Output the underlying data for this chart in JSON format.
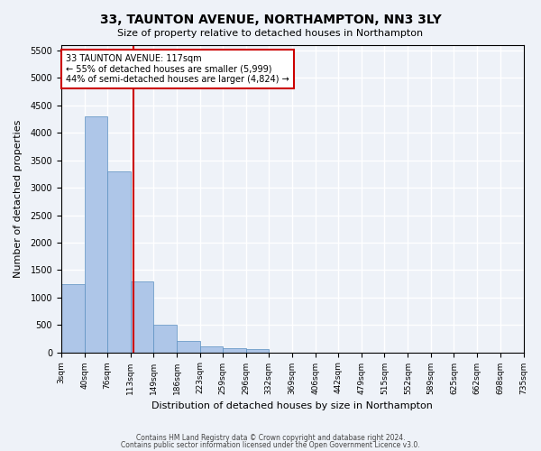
{
  "title": "33, TAUNTON AVENUE, NORTHAMPTON, NN3 3LY",
  "subtitle": "Size of property relative to detached houses in Northampton",
  "xlabel": "Distribution of detached houses by size in Northampton",
  "ylabel": "Number of detached properties",
  "footer_line1": "Contains HM Land Registry data © Crown copyright and database right 2024.",
  "footer_line2": "Contains public sector information licensed under the Open Government Licence v3.0.",
  "annotation_title": "33 TAUNTON AVENUE: 117sqm",
  "annotation_line2": "← 55% of detached houses are smaller (5,999)",
  "annotation_line3": "44% of semi-detached houses are larger (4,824) →",
  "property_size": 117,
  "bin_edges": [
    3,
    40,
    76,
    113,
    149,
    186,
    223,
    259,
    296,
    332,
    369,
    406,
    442,
    479,
    515,
    552,
    589,
    625,
    662,
    698,
    735
  ],
  "bar_heights": [
    1250,
    4300,
    3300,
    1300,
    500,
    200,
    100,
    70,
    60,
    0,
    0,
    0,
    0,
    0,
    0,
    0,
    0,
    0,
    0,
    0
  ],
  "bar_color": "#aec6e8",
  "bar_edge_color": "#5a8fc0",
  "marker_color": "#cc0000",
  "background_color": "#eef2f8",
  "grid_color": "#ffffff",
  "ylim": [
    0,
    5600
  ],
  "yticks": [
    0,
    500,
    1000,
    1500,
    2000,
    2500,
    3000,
    3500,
    4000,
    4500,
    5000,
    5500
  ]
}
